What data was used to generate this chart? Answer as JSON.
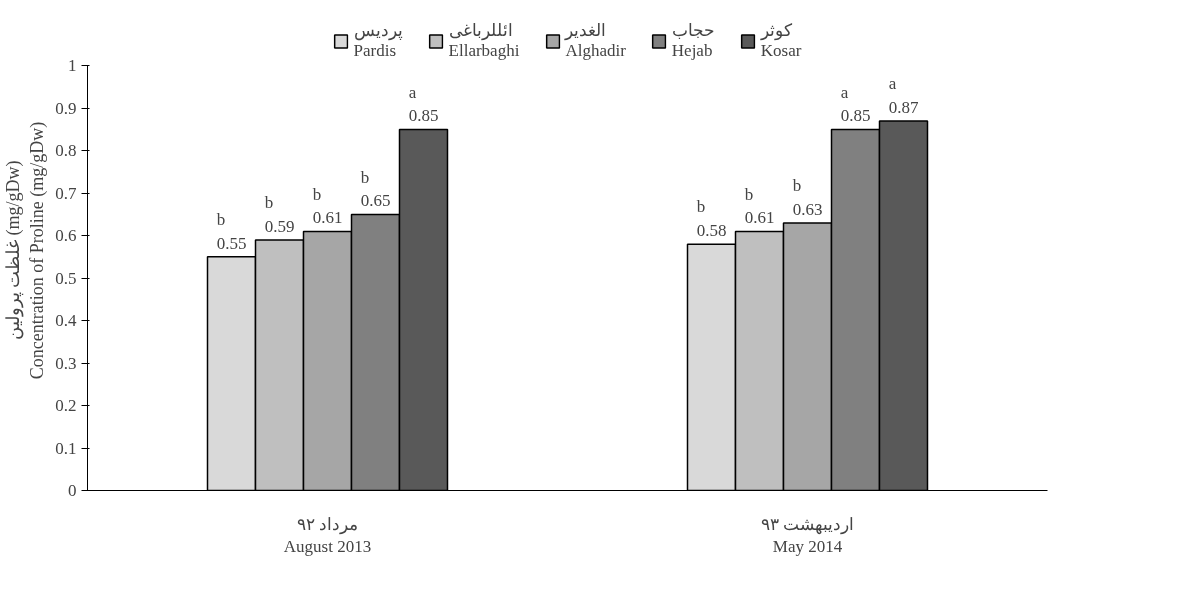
{
  "chart_data": {
    "type": "bar",
    "categories": [
      "مرداد ۹۲\nAugust 2013",
      "اردیبهشت ۹۳\nMay 2014"
    ],
    "ylabel": "غلظت پرولین (mg/gDw)\nConcentration of Proline (mg/gDw)",
    "ylim": [
      0,
      1
    ],
    "yticks": [
      0,
      0.1,
      0.2,
      0.3,
      0.4,
      0.5,
      0.6,
      0.7,
      0.8,
      0.9,
      1
    ],
    "grid": false,
    "legend": "top",
    "series": [
      {
        "name": "پردیس\nPardis",
        "color": "#d9d9d9",
        "values": [
          0.55,
          0.58
        ],
        "value_labels": [
          "b\n0.55",
          "b\n0.58"
        ]
      },
      {
        "name": "ائللرباغی\nEllarbaghi",
        "color": "#bfbfbf",
        "values": [
          0.59,
          0.61
        ],
        "value_labels": [
          "b\n0.59",
          "b\n0.61"
        ]
      },
      {
        "name": "الغدیر\nAlghadir",
        "color": "#a6a6a6",
        "values": [
          0.61,
          0.63
        ],
        "value_labels": [
          "b\n0.61",
          "b\n0.63"
        ]
      },
      {
        "name": "حجاب\nHejab",
        "color": "#808080",
        "values": [
          0.65,
          0.85
        ],
        "value_labels": [
          "b\n0.65",
          "a\n0.85"
        ]
      },
      {
        "name": "کوثر\nKosar",
        "color": "#595959",
        "values": [
          0.85,
          0.87
        ],
        "value_labels": [
          "a\n0.85",
          "a\n0.87"
        ]
      }
    ]
  }
}
